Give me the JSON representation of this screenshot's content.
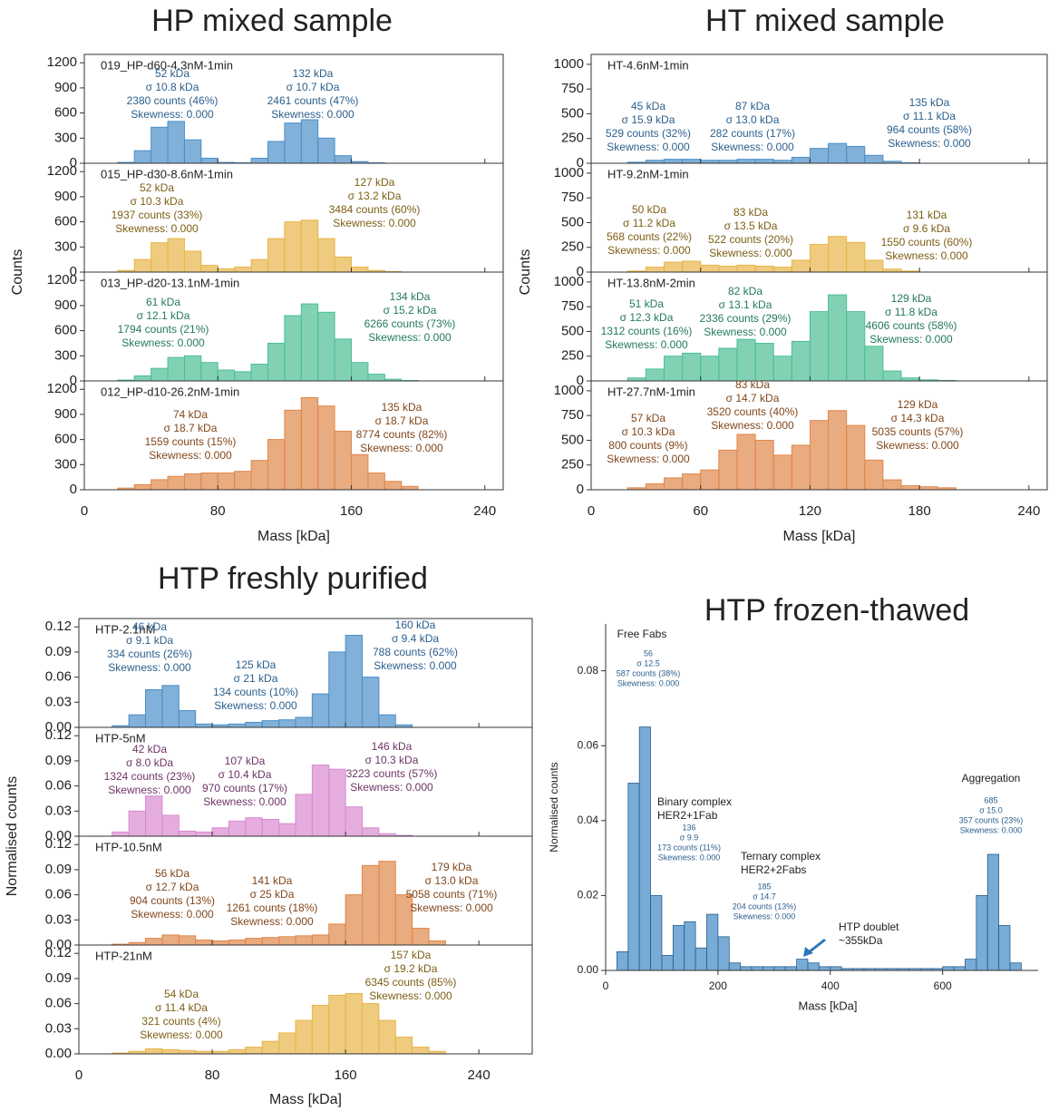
{
  "chart_data": [
    {
      "type": "histogram",
      "title": "HP mixed sample",
      "xlabel": "Mass [kDa]",
      "ylabel": "Counts",
      "xlim": [
        0,
        251
      ],
      "xticks": [
        0,
        80,
        160,
        240
      ],
      "ylim": [
        0,
        1300
      ],
      "yticks": [
        0,
        300,
        600,
        900,
        1200
      ],
      "panels": [
        {
          "label": "019_HP-d60-4.3nM-1min",
          "color": "#4b8fc8",
          "text_color": "#2b5f8c",
          "bins": [
            20,
            30,
            40,
            50,
            60,
            70,
            80,
            90,
            100,
            110,
            120,
            130,
            140,
            150,
            160,
            170,
            180,
            190,
            200
          ],
          "counts": [
            10,
            150,
            430,
            500,
            280,
            60,
            10,
            5,
            60,
            260,
            480,
            520,
            300,
            90,
            20,
            5,
            0,
            0
          ],
          "annotations": [
            [
              "52 kDa",
              "σ 10.8 kDa",
              "2380 counts (46%)",
              "Skewness: 0.000"
            ],
            [
              "132 kDa",
              "σ 10.7 kDa",
              "2461 counts (47%)",
              "Skewness: 0.000"
            ]
          ]
        },
        {
          "label": "015_HP-d30-8.6nM-1min",
          "color": "#e8b548",
          "text_color": "#7d5e14",
          "bins": [
            20,
            30,
            40,
            50,
            60,
            70,
            80,
            90,
            100,
            110,
            120,
            130,
            140,
            150,
            160,
            170,
            180,
            190,
            200
          ],
          "counts": [
            20,
            150,
            350,
            400,
            250,
            80,
            40,
            60,
            150,
            400,
            600,
            620,
            400,
            180,
            60,
            20,
            5,
            0
          ],
          "annotations": [
            [
              "52 kDa",
              "σ 10.3 kDa",
              "1937 counts (33%)",
              "Skewness: 0.000"
            ],
            [
              "127 kDa",
              "σ 13.2 kDa",
              "3484 counts (60%)",
              "Skewness: 0.000"
            ]
          ]
        },
        {
          "label": "013_HP-d20-13.1nM-1min",
          "color": "#4cbf94",
          "text_color": "#237a5c",
          "bins": [
            20,
            30,
            40,
            50,
            60,
            70,
            80,
            90,
            100,
            110,
            120,
            130,
            140,
            150,
            160,
            170,
            180,
            190,
            200
          ],
          "counts": [
            10,
            60,
            150,
            280,
            300,
            220,
            130,
            110,
            200,
            450,
            780,
            920,
            820,
            500,
            220,
            80,
            20,
            5
          ],
          "annotations": [
            [
              "61 kDa",
              "σ 12.1 kDa",
              "1794 counts (21%)",
              "Skewness: 0.000"
            ],
            [
              "134 kDa",
              "σ 15.2 kDa",
              "6266 counts (73%)",
              "Skewness: 0.000"
            ]
          ]
        },
        {
          "label": "012_HP-d10-26.2nM-1min",
          "color": "#e0884a",
          "text_color": "#80461a",
          "bins": [
            20,
            30,
            40,
            50,
            60,
            70,
            80,
            90,
            100,
            110,
            120,
            130,
            140,
            150,
            160,
            170,
            180,
            190,
            200
          ],
          "counts": [
            20,
            60,
            120,
            160,
            190,
            200,
            200,
            220,
            350,
            600,
            950,
            1100,
            1000,
            700,
            420,
            200,
            100,
            40
          ],
          "annotations": [
            [
              "74 kDa",
              "σ 18.7 kDa",
              "1559 counts (15%)",
              "Skewness: 0.000"
            ],
            [
              "135 kDa",
              "σ 18.7 kDa",
              "8774 counts (82%)",
              "Skewness: 0.000"
            ]
          ]
        }
      ]
    },
    {
      "type": "histogram",
      "title": "HT mixed sample",
      "xlabel": "Mass [kDa]",
      "ylabel": "Counts",
      "xlim": [
        0,
        250
      ],
      "xticks": [
        0,
        60,
        120,
        180,
        240
      ],
      "ylim": [
        0,
        1100
      ],
      "yticks": [
        0,
        250,
        500,
        750,
        1000
      ],
      "panels": [
        {
          "label": "HT-4.6nM-1min",
          "color": "#4b8fc8",
          "text_color": "#2b5f8c",
          "bins": [
            20,
            30,
            40,
            50,
            60,
            70,
            80,
            90,
            100,
            110,
            120,
            130,
            140,
            150,
            160,
            170,
            180,
            190,
            200
          ],
          "counts": [
            10,
            30,
            40,
            40,
            30,
            30,
            40,
            40,
            30,
            60,
            150,
            200,
            170,
            80,
            20,
            5,
            0,
            0
          ],
          "annotations": [
            [
              "45 kDa",
              "σ 15.9 kDa",
              "529 counts (32%)",
              "Skewness: 0.000"
            ],
            [
              "87 kDa",
              "σ 13.0 kDa",
              "282 counts (17%)",
              "Skewness: 0.000"
            ],
            [
              "135 kDa",
              "σ 11.1 kDa",
              "964 counts (58%)",
              "Skewness: 0.000"
            ]
          ]
        },
        {
          "label": "HT-9.2nM-1min",
          "color": "#e8b548",
          "text_color": "#7d5e14",
          "bins": [
            20,
            30,
            40,
            50,
            60,
            70,
            80,
            90,
            100,
            110,
            120,
            130,
            140,
            150,
            160,
            170,
            180,
            190,
            200
          ],
          "counts": [
            10,
            50,
            100,
            110,
            70,
            60,
            70,
            60,
            50,
            120,
            280,
            360,
            300,
            120,
            30,
            10,
            0,
            0
          ],
          "annotations": [
            [
              "50 kDa",
              "σ 11.2 kDa",
              "568 counts (22%)",
              "Skewness: 0.000"
            ],
            [
              "83 kDa",
              "σ 13.5 kDa",
              "522 counts (20%)",
              "Skewness: 0.000"
            ],
            [
              "131 kDa",
              "σ 9.6 kDa",
              "1550 counts (60%)",
              "Skewness: 0.000"
            ]
          ]
        },
        {
          "label": "HT-13.8nM-2min",
          "color": "#4cbf94",
          "text_color": "#237a5c",
          "bins": [
            20,
            30,
            40,
            50,
            60,
            70,
            80,
            90,
            100,
            110,
            120,
            130,
            140,
            150,
            160,
            170,
            180,
            190,
            200
          ],
          "counts": [
            30,
            120,
            250,
            280,
            250,
            330,
            420,
            380,
            250,
            400,
            700,
            870,
            700,
            350,
            100,
            30,
            10,
            5
          ],
          "annotations": [
            [
              "51 kDa",
              "σ 12.3 kDa",
              "1312 counts (16%)",
              "Skewness: 0.000"
            ],
            [
              "82 kDa",
              "σ 13.1 kDa",
              "2336 counts (29%)",
              "Skewness: 0.000"
            ],
            [
              "129 kDa",
              "σ 11.8 kDa",
              "4606 counts (58%)",
              "Skewness: 0.000"
            ]
          ]
        },
        {
          "label": "HT-27.7nM-1min",
          "color": "#e0884a",
          "text_color": "#80461a",
          "bins": [
            20,
            30,
            40,
            50,
            60,
            70,
            80,
            90,
            100,
            110,
            120,
            130,
            140,
            150,
            160,
            170,
            180,
            190,
            200
          ],
          "counts": [
            20,
            60,
            120,
            160,
            200,
            400,
            560,
            500,
            350,
            450,
            700,
            800,
            650,
            300,
            100,
            40,
            30,
            20
          ],
          "annotations": [
            [
              "57 kDa",
              "σ 10.3 kDa",
              "800 counts (9%)",
              "Skewness: 0.000"
            ],
            [
              "83 kDa",
              "σ 14.7 kDa",
              "3520 counts (40%)",
              "Skewness: 0.000"
            ],
            [
              "129 kDa",
              "σ 14.3 kDa",
              "5035 counts (57%)",
              "Skewness: 0.000"
            ]
          ]
        }
      ]
    },
    {
      "type": "histogram",
      "title": "HTP freshly purified",
      "xlabel": "Mass [kDa]",
      "ylabel": "Normalised counts",
      "xlim": [
        0,
        272
      ],
      "xticks": [
        0,
        80,
        160,
        240
      ],
      "ylim": [
        0,
        0.13
      ],
      "yticks": [
        {
          "value": 0,
          "label": "0.00"
        },
        {
          "value": 0.03,
          "label": "0.03"
        },
        {
          "value": 0.06,
          "label": "0.06"
        },
        {
          "value": 0.09,
          "label": "0.09"
        },
        {
          "value": 0.12,
          "label": "0.12"
        }
      ],
      "panels": [
        {
          "label": "HTP-2.1nM",
          "color": "#4b8fc8",
          "text_color": "#2b5f8c",
          "bins": [
            20,
            30,
            40,
            50,
            60,
            70,
            80,
            90,
            100,
            110,
            120,
            130,
            140,
            150,
            160,
            170,
            180,
            190,
            200
          ],
          "counts": [
            0.002,
            0.015,
            0.045,
            0.05,
            0.02,
            0.004,
            0.003,
            0.004,
            0.006,
            0.008,
            0.009,
            0.012,
            0.04,
            0.09,
            0.11,
            0.06,
            0.015,
            0.003
          ],
          "annotations": [
            [
              "46 kDa",
              "σ 9.1 kDa",
              "334 counts (26%)",
              "Skewness: 0.000"
            ],
            [
              "125 kDa",
              "σ 21 kDa",
              "134 counts (10%)",
              "Skewness: 0.000"
            ],
            [
              "160 kDa",
              "σ 9.4 kDa",
              "788 counts (62%)",
              "Skewness: 0.000"
            ]
          ]
        },
        {
          "label": "HTP-5nM",
          "color": "#d88ad0",
          "text_color": "#6e3466",
          "bins": [
            20,
            30,
            40,
            50,
            60,
            70,
            80,
            90,
            100,
            110,
            120,
            130,
            140,
            150,
            160,
            170,
            180,
            190,
            200
          ],
          "counts": [
            0.005,
            0.03,
            0.048,
            0.025,
            0.006,
            0.005,
            0.01,
            0.018,
            0.022,
            0.02,
            0.015,
            0.05,
            0.085,
            0.08,
            0.035,
            0.01,
            0.003,
            0.001
          ],
          "annotations": [
            [
              "42 kDa",
              "σ 8.0 kDa",
              "1324 counts (23%)",
              "Skewness: 0.000"
            ],
            [
              "107 kDa",
              "σ 10.4 kDa",
              "970 counts (17%)",
              "Skewness: 0.000"
            ],
            [
              "146 kDa",
              "σ 10.3 kDa",
              "3223 counts (57%)",
              "Skewness: 0.000"
            ]
          ]
        },
        {
          "label": "HTP-10.5nM",
          "color": "#e0884a",
          "text_color": "#80461a",
          "bins": [
            20,
            30,
            40,
            50,
            60,
            70,
            80,
            90,
            100,
            110,
            120,
            130,
            140,
            150,
            160,
            170,
            180,
            190,
            200,
            210,
            220
          ],
          "counts": [
            0.001,
            0.003,
            0.008,
            0.012,
            0.011,
            0.006,
            0.005,
            0.006,
            0.008,
            0.009,
            0.01,
            0.011,
            0.012,
            0.025,
            0.06,
            0.095,
            0.1,
            0.06,
            0.02,
            0.005
          ],
          "annotations": [
            [
              "56 kDa",
              "σ 12.7 kDa",
              "904 counts (13%)",
              "Skewness: 0.000"
            ],
            [
              "141 kDa",
              "σ 25 kDa",
              "1261 counts (18%)",
              "Skewness: 0.000"
            ],
            [
              "179 kDa",
              "σ 13.0 kDa",
              "5058 counts (71%)",
              "Skewness: 0.000"
            ]
          ]
        },
        {
          "label": "HTP-21nM",
          "color": "#e8b548",
          "text_color": "#7d5e14",
          "bins": [
            20,
            30,
            40,
            50,
            60,
            70,
            80,
            90,
            100,
            110,
            120,
            130,
            140,
            150,
            160,
            170,
            180,
            190,
            200,
            210,
            220
          ],
          "counts": [
            0.001,
            0.003,
            0.006,
            0.005,
            0.004,
            0.003,
            0.003,
            0.005,
            0.008,
            0.015,
            0.025,
            0.04,
            0.058,
            0.07,
            0.072,
            0.06,
            0.04,
            0.02,
            0.008,
            0.003
          ],
          "annotations": [
            [
              "54 kDa",
              "σ 11.4 kDa",
              "321 counts (4%)",
              "Skewness: 0.000"
            ],
            [
              "157 kDa",
              "σ 19.2 kDa",
              "6345 counts (85%)",
              "Skewness: 0.000"
            ]
          ]
        }
      ]
    },
    {
      "type": "histogram_single",
      "title": "HTP frozen-thawed",
      "xlabel": "Mass [kDa]",
      "ylabel": "Normalised counts",
      "xlim": [
        0,
        770
      ],
      "xticks": [
        0,
        200,
        400,
        600
      ],
      "ylim": [
        0,
        0.0925
      ],
      "yticks": [
        {
          "value": 0,
          "label": "0.00"
        },
        {
          "value": 0.02,
          "label": "0.02"
        },
        {
          "value": 0.04,
          "label": "0.04"
        },
        {
          "value": 0.06,
          "label": "0.06"
        },
        {
          "value": 0.08,
          "label": "0.08"
        }
      ],
      "color": "#4b8fc8",
      "text_color": "#2b5f8c",
      "bins": [
        20,
        40,
        60,
        80,
        100,
        120,
        140,
        160,
        180,
        200,
        220,
        240,
        260,
        280,
        300,
        320,
        340,
        360,
        380,
        400,
        420,
        440,
        460,
        480,
        500,
        520,
        540,
        560,
        580,
        600,
        620,
        640,
        660,
        680,
        700,
        720,
        740
      ],
      "counts": [
        0.005,
        0.05,
        0.065,
        0.02,
        0.004,
        0.012,
        0.013,
        0.006,
        0.015,
        0.009,
        0.002,
        0.001,
        0.001,
        0.001,
        0.001,
        0.001,
        0.003,
        0.002,
        0.001,
        0.001,
        0.0005,
        0.0005,
        0.0005,
        0.0005,
        0.0005,
        0.0005,
        0.0005,
        0.0005,
        0.0005,
        0.001,
        0.001,
        0.003,
        0.02,
        0.031,
        0.012,
        0.002
      ],
      "annotations": [
        {
          "title": [
            "Free Fabs"
          ],
          "stats": [
            "56",
            "σ 12.5",
            "587 counts (38%)",
            "Skewness: 0.000"
          ]
        },
        {
          "title": [
            "Binary complex",
            "HER2+1Fab"
          ],
          "stats": [
            "136",
            "σ 9.9",
            "173 counts (11%)",
            "Skewness: 0.000"
          ]
        },
        {
          "title": [
            "Ternary complex",
            "HER2+2Fabs"
          ],
          "stats": [
            "185",
            "σ 14.7",
            "204 counts (13%)",
            "Skewness: 0.000"
          ]
        },
        {
          "title": [
            "HTP doublet",
            "~355kDa"
          ],
          "stats": []
        },
        {
          "title": [
            "Aggregation"
          ],
          "stats": [
            "685",
            "σ 15.0",
            "357 counts (23%)",
            "Skewness: 0.000"
          ]
        }
      ]
    }
  ]
}
